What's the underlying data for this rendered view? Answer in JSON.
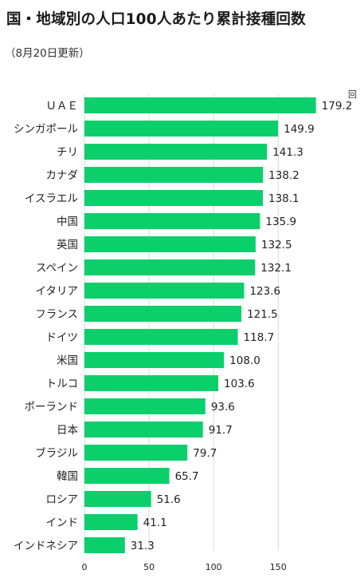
{
  "chart_data": {
    "type": "bar",
    "orientation": "horizontal",
    "title": "国・地域別の人口100人あたり累計接種回数",
    "subtitle": "（8月20日更新）",
    "unit": "回",
    "categories": [
      "ＵＡＥ",
      "シンガポール",
      "チリ",
      "カナダ",
      "イスラエル",
      "中国",
      "英国",
      "スペイン",
      "イタリア",
      "フランス",
      "ドイツ",
      "米国",
      "トルコ",
      "ポーランド",
      "日本",
      "ブラジル",
      "韓国",
      "ロシア",
      "インド",
      "インドネシア"
    ],
    "values": [
      179.2,
      149.9,
      141.3,
      138.2,
      138.1,
      135.9,
      132.5,
      132.1,
      123.6,
      121.5,
      118.7,
      108.0,
      103.6,
      93.6,
      91.7,
      79.7,
      65.7,
      51.6,
      41.1,
      31.3
    ],
    "value_labels": [
      "179.2",
      "149.9",
      "141.3",
      "138.2",
      "138.1",
      "135.9",
      "132.5",
      "132.1",
      "123.6",
      "121.5",
      "118.7",
      "108.0",
      "103.6",
      "93.6",
      "91.7",
      "79.7",
      "65.7",
      "51.6",
      "41.1",
      "31.3"
    ],
    "xticks": [
      "0",
      "50",
      "100",
      "150"
    ],
    "xtick_values": [
      0,
      50,
      100,
      150
    ],
    "xlim": [
      0,
      200
    ],
    "grid": true,
    "bar_color": "#0acf6b",
    "grid_color": "#d9d9d9"
  }
}
